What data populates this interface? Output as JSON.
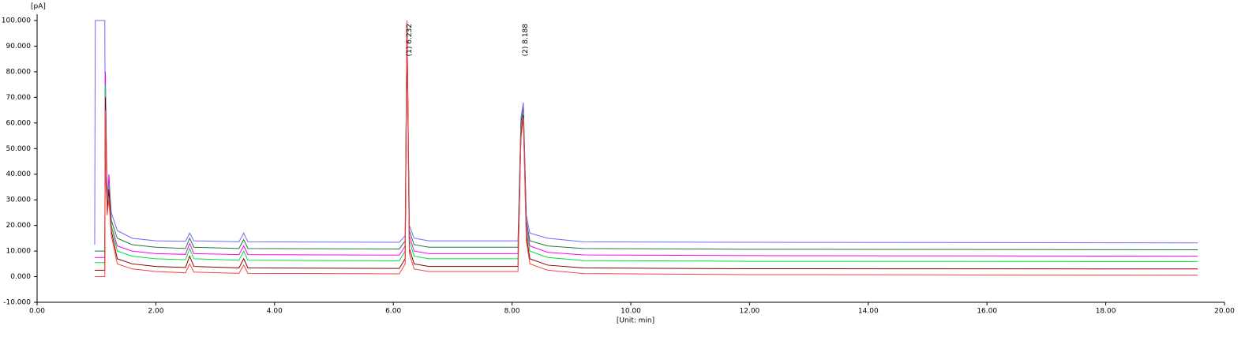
{
  "chart_data": {
    "type": "line",
    "y_label": "[pA]",
    "x_label": "[Unit: min]",
    "x": [
      0.97,
      0.98,
      1.14,
      1.15,
      1.18,
      1.21,
      1.25,
      1.35,
      1.6,
      2.0,
      2.5,
      2.57,
      2.64,
      3.4,
      3.48,
      3.55,
      6.1,
      6.2,
      6.23,
      6.27,
      6.35,
      6.6,
      8.1,
      8.15,
      8.19,
      8.24,
      8.3,
      8.6,
      9.2,
      12.0,
      19.55
    ],
    "series": [
      {
        "color": "#6b6bff",
        "values": [
          12.5,
          100,
          100,
          40,
          28,
          38,
          25,
          18,
          15,
          14,
          13.8,
          17,
          14,
          13.6,
          17,
          13.6,
          13.4,
          16,
          100,
          20,
          15,
          14,
          14,
          62,
          68,
          24,
          17,
          15,
          13.6,
          13.4,
          13.2
        ]
      },
      {
        "color": "#1e7a3e",
        "values": [
          10,
          10,
          10,
          70,
          25,
          36,
          22,
          15,
          12.5,
          11.5,
          11,
          15,
          11.5,
          11,
          14.5,
          11,
          10.8,
          14,
          100,
          18,
          12.5,
          11.5,
          11.5,
          60,
          66,
          22,
          14,
          12,
          11,
          10.7,
          10.5
        ]
      },
      {
        "color": "#ff00ff",
        "values": [
          7.5,
          7.5,
          7.5,
          80,
          30,
          40,
          20,
          12,
          10,
          9,
          8.7,
          13,
          9,
          8.6,
          12,
          8.6,
          8.4,
          12,
          100,
          16,
          10,
          9,
          9,
          58,
          65,
          20,
          12,
          9.5,
          8.5,
          8.2,
          8
        ]
      },
      {
        "color": "#00e040",
        "values": [
          5.5,
          5.5,
          5.5,
          75,
          28,
          36,
          20,
          10,
          8,
          7,
          6.6,
          11,
          7,
          6.4,
          10,
          6.4,
          6.2,
          10,
          100,
          14,
          8,
          7,
          7,
          57,
          64,
          18,
          10,
          7.5,
          6.3,
          6,
          5.9
        ]
      },
      {
        "color": "#800000",
        "values": [
          2.5,
          2.5,
          2.5,
          70,
          26,
          34,
          18,
          7,
          5,
          4,
          3.6,
          8,
          4,
          3.4,
          7,
          3.4,
          3.2,
          7,
          100,
          11,
          5,
          4,
          4,
          55,
          63,
          16,
          7,
          4.5,
          3.4,
          3.1,
          3
        ]
      },
      {
        "color": "#ff4040",
        "values": [
          0,
          0,
          0,
          65,
          24,
          30,
          16,
          5,
          3,
          2,
          1.5,
          5,
          1.8,
          1.3,
          4.5,
          1.3,
          1.1,
          5,
          100,
          9,
          3,
          2,
          2,
          54,
          62,
          14,
          5,
          2.5,
          1.2,
          0.8,
          0.6
        ]
      }
    ],
    "annotations": [
      {
        "text": "(1) 6.232",
        "x": 6.232
      },
      {
        "text": "(2) 8.188",
        "x": 8.188
      }
    ],
    "xlim": [
      0,
      20
    ],
    "ylim": [
      -10,
      100
    ],
    "xticks": [
      {
        "value": 0,
        "label": "0.00"
      },
      {
        "value": 2,
        "label": "2.00"
      },
      {
        "value": 4,
        "label": "4.00"
      },
      {
        "value": 6,
        "label": "6.00"
      },
      {
        "value": 8,
        "label": "8.00"
      },
      {
        "value": 10,
        "label": "10.00"
      },
      {
        "value": 12,
        "label": "12.00"
      },
      {
        "value": 14,
        "label": "14.00"
      },
      {
        "value": 16,
        "label": "16.00"
      },
      {
        "value": 18,
        "label": "18.00"
      },
      {
        "value": 20,
        "label": "20.00"
      }
    ],
    "yticks": [
      {
        "value": -10,
        "label": "-10.000"
      },
      {
        "value": 0,
        "label": "0.000"
      },
      {
        "value": 10,
        "label": "10.000"
      },
      {
        "value": 20,
        "label": "20.000"
      },
      {
        "value": 30,
        "label": "30.000"
      },
      {
        "value": 40,
        "label": "40.000"
      },
      {
        "value": 50,
        "label": "50.000"
      },
      {
        "value": 60,
        "label": "60.000"
      },
      {
        "value": 70,
        "label": "70.000"
      },
      {
        "value": 80,
        "label": "80.000"
      },
      {
        "value": 90,
        "label": "90.000"
      },
      {
        "value": 100,
        "label": "100.000"
      }
    ]
  }
}
